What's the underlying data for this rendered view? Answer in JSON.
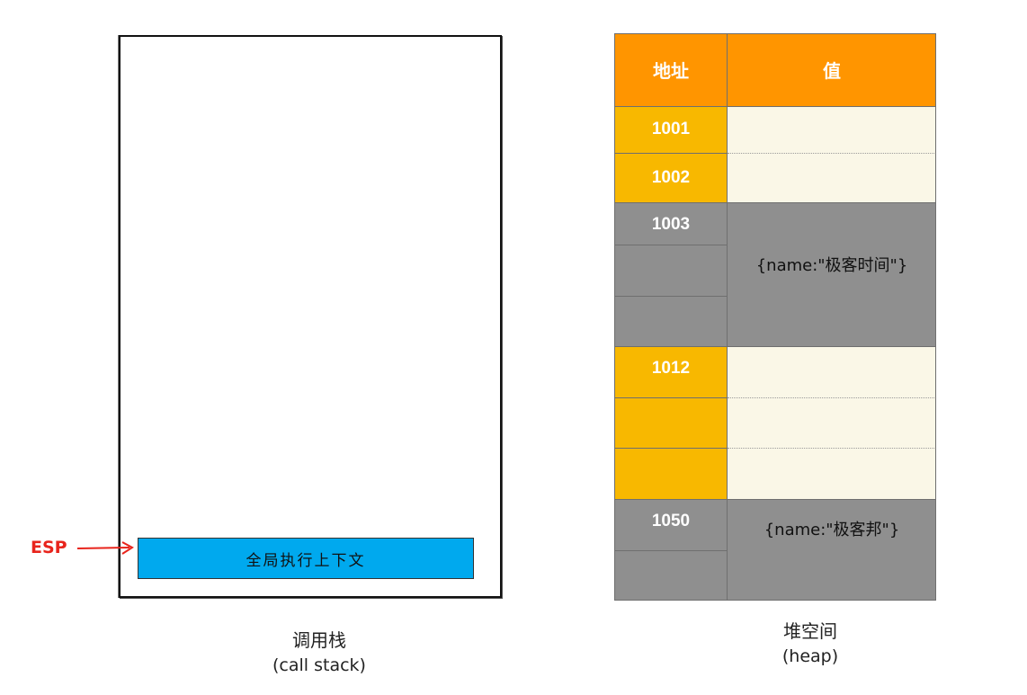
{
  "call_stack": {
    "frame_label": "全局执行上下文",
    "esp_label": "ESP",
    "caption": "调用栈",
    "caption_sub": "(call stack)"
  },
  "heap": {
    "header": {
      "address": "地址",
      "value": "值"
    },
    "rows": [
      {
        "address": "1001"
      },
      {
        "address": "1002"
      },
      {
        "address": "1003",
        "value": "{name:\"极客时间\"}"
      },
      {
        "address": "1012"
      },
      {
        "address": "1050",
        "value": "{name:\"极客邦\"}"
      }
    ],
    "caption": "堆空间",
    "caption_sub": "(heap)"
  },
  "colors": {
    "header": "#ff9500",
    "address_yellow": "#f8b800",
    "gray": "#8f8f8f",
    "value_empty": "#faf7e7",
    "stack_frame": "#00a9ee",
    "esp": "#e8241c"
  }
}
